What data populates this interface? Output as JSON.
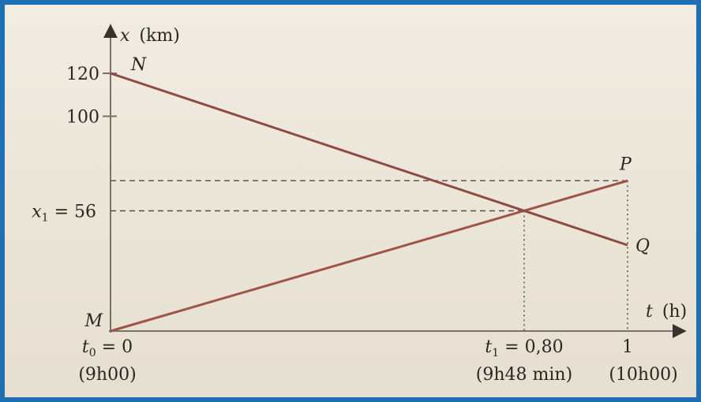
{
  "chart_data": {
    "type": "line",
    "ylabel_var": "x",
    "ylabel_unit": "(km)",
    "xlabel_var": "t",
    "xlabel_unit": "(h)",
    "xlim": [
      0,
      1
    ],
    "ylim": [
      0,
      120
    ],
    "y_ticks": [
      {
        "value": 120,
        "label": "120"
      },
      {
        "value": 100,
        "label": "100"
      }
    ],
    "x1": {
      "value": 56,
      "label_var": "x",
      "label_sub": "1",
      "label_rest": " = 56"
    },
    "t0": {
      "value": 0,
      "label_var": "t",
      "label_sub": "0",
      "label_rest": " = 0",
      "time": "(9h00)"
    },
    "t1": {
      "value": 0.8,
      "label_var": "t",
      "label_sub": "1",
      "label_rest": " = 0,80",
      "time": "(9h48 min)"
    },
    "t_end": {
      "value": 1,
      "label": "1",
      "time": "(10h00)"
    },
    "series": [
      {
        "points": [
          {
            "name": "M",
            "t": 0,
            "x": 0
          },
          {
            "name": "P",
            "t": 1,
            "x": 70
          }
        ],
        "color": "#a05447"
      },
      {
        "points": [
          {
            "name": "N",
            "t": 0,
            "x": 120
          },
          {
            "name": "Q",
            "t": 1,
            "x": 40
          }
        ],
        "color": "#8f4a40"
      }
    ],
    "intersection": {
      "t": 0.8,
      "x": 56
    },
    "grid": false
  }
}
